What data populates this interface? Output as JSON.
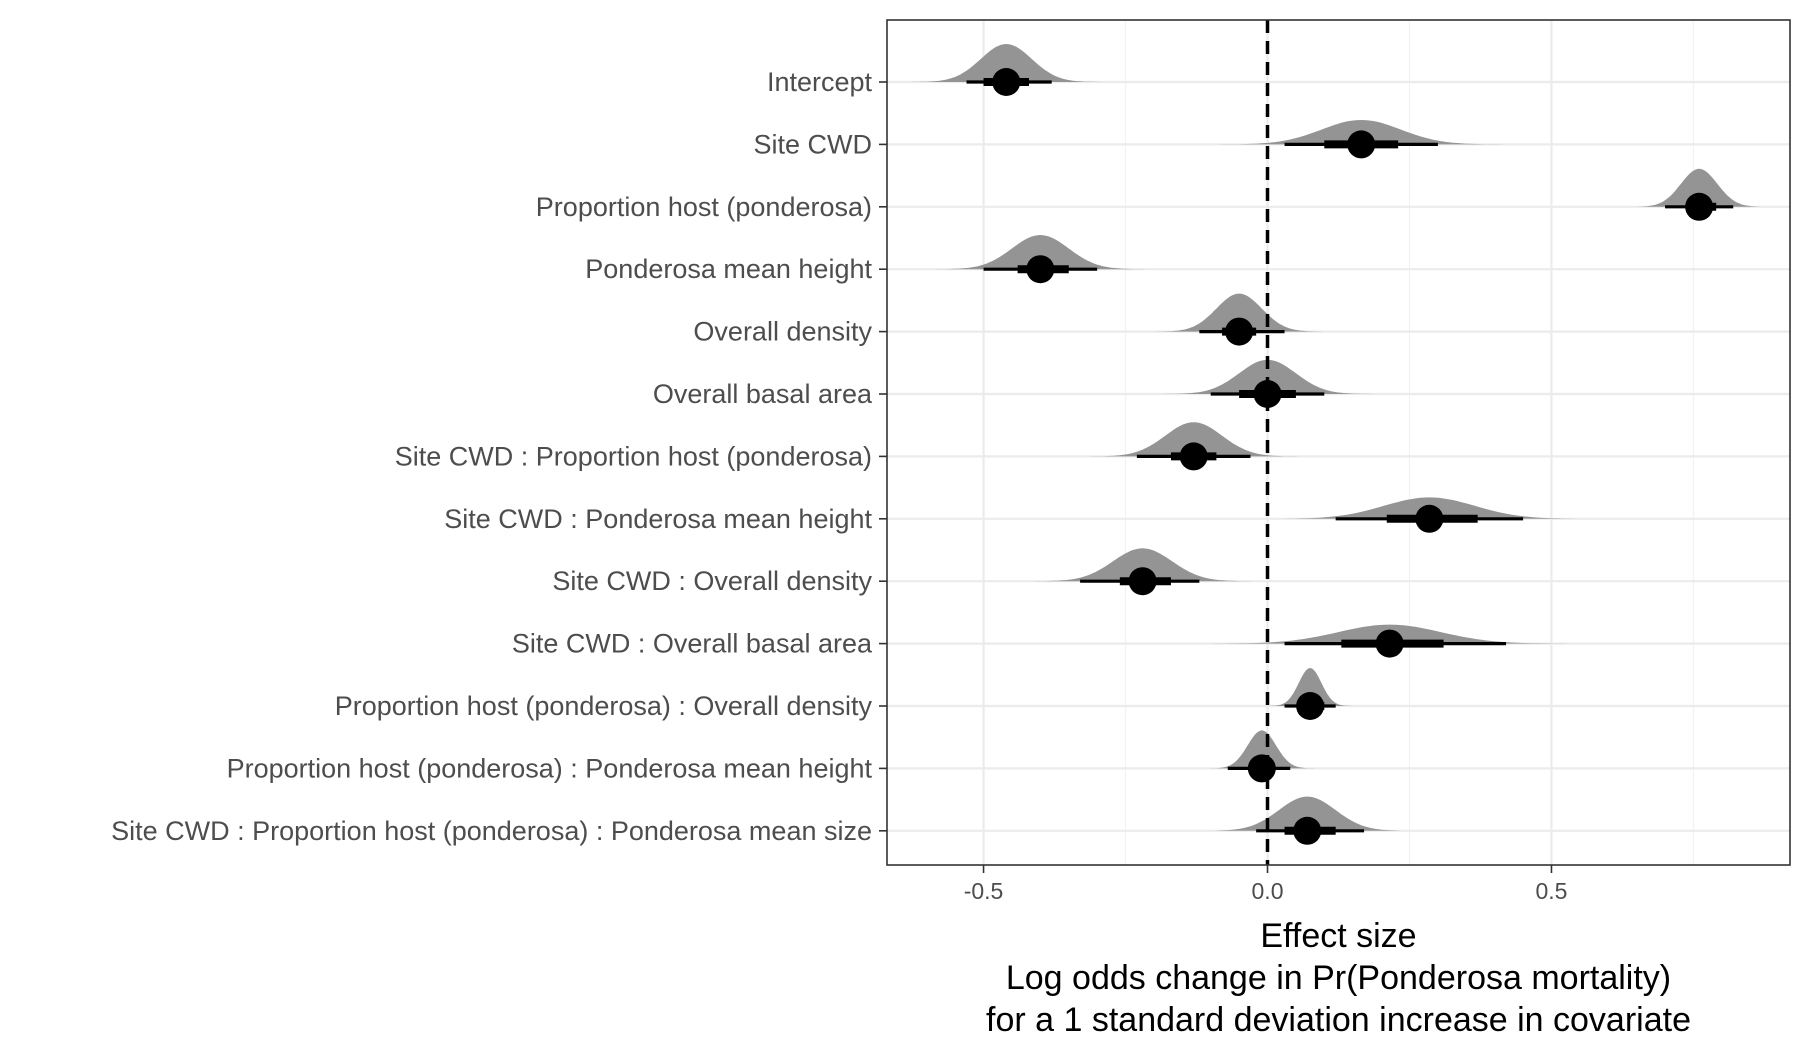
{
  "chart_data": {
    "type": "scatter",
    "subtype": "posterior interval / halfeye plot",
    "xlabel": [
      "Effect size",
      "Log odds change in Pr(Ponderosa mortality)",
      "for a 1 standard deviation increase in covariate"
    ],
    "ylabel": "",
    "xlim": [
      -0.67,
      0.92
    ],
    "xticks": [
      -0.5,
      0.0,
      0.5
    ],
    "xtick_labels": [
      "-0.5",
      "0.0",
      "0.5"
    ],
    "reference_line": {
      "x": 0,
      "style": "dashed"
    },
    "grid": true,
    "legend": "none",
    "colors": {
      "density": "#8e8e8e",
      "points": "#000000",
      "grid": "#ebebeb"
    },
    "categories": [
      "Intercept",
      "Site CWD",
      "Proportion host (ponderosa)",
      "Ponderosa mean height",
      "Overall density",
      "Overall basal area",
      "Site CWD : Proportion host (ponderosa)",
      "Site CWD : Ponderosa mean height",
      "Site CWD : Overall density",
      "Site CWD : Overall basal area",
      "Proportion host (ponderosa) : Overall density",
      "Proportion host (ponderosa) : Ponderosa mean height",
      "Site CWD : Proportion host (ponderosa) : Ponderosa mean size"
    ],
    "estimates": [
      {
        "median": -0.46,
        "ci66": [
          -0.5,
          -0.42
        ],
        "ci95": [
          -0.53,
          -0.38
        ],
        "sd": 0.045
      },
      {
        "median": 0.165,
        "ci66": [
          0.1,
          0.23
        ],
        "ci95": [
          0.03,
          0.3
        ],
        "sd": 0.07
      },
      {
        "median": 0.76,
        "ci66": [
          0.74,
          0.79
        ],
        "ci95": [
          0.7,
          0.82
        ],
        "sd": 0.032
      },
      {
        "median": -0.4,
        "ci66": [
          -0.44,
          -0.35
        ],
        "ci95": [
          -0.5,
          -0.3
        ],
        "sd": 0.05
      },
      {
        "median": -0.05,
        "ci66": [
          -0.08,
          -0.02
        ],
        "ci95": [
          -0.12,
          0.03
        ],
        "sd": 0.04
      },
      {
        "median": 0.0,
        "ci66": [
          -0.05,
          0.05
        ],
        "ci95": [
          -0.1,
          0.1
        ],
        "sd": 0.05
      },
      {
        "median": -0.13,
        "ci66": [
          -0.17,
          -0.09
        ],
        "ci95": [
          -0.23,
          -0.03
        ],
        "sd": 0.05
      },
      {
        "median": 0.285,
        "ci66": [
          0.21,
          0.37
        ],
        "ci95": [
          0.12,
          0.45
        ],
        "sd": 0.08
      },
      {
        "median": -0.22,
        "ci66": [
          -0.26,
          -0.17
        ],
        "ci95": [
          -0.33,
          -0.12
        ],
        "sd": 0.052
      },
      {
        "median": 0.215,
        "ci66": [
          0.13,
          0.31
        ],
        "ci95": [
          0.03,
          0.42
        ],
        "sd": 0.09
      },
      {
        "median": 0.075,
        "ci66": [
          0.06,
          0.1
        ],
        "ci95": [
          0.03,
          0.12
        ],
        "sd": 0.02
      },
      {
        "median": -0.01,
        "ci66": [
          -0.03,
          0.01
        ],
        "ci95": [
          -0.07,
          0.04
        ],
        "sd": 0.025
      },
      {
        "median": 0.07,
        "ci66": [
          0.03,
          0.12
        ],
        "ci95": [
          -0.02,
          0.17
        ],
        "sd": 0.05
      }
    ]
  }
}
